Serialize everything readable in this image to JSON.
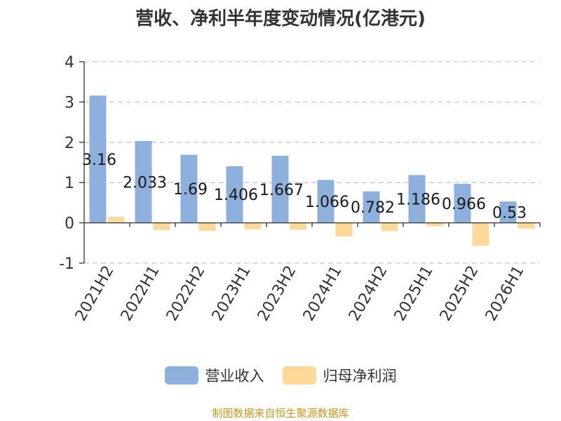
{
  "chart_data": {
    "type": "bar",
    "title": "营收、净利半年度变动情况(亿港元)",
    "categories": [
      "2021H2",
      "2022H1",
      "2022H2",
      "2023H1",
      "2023H2",
      "2024H1",
      "2024H2",
      "2025H1",
      "2025H2",
      "2026H1"
    ],
    "series": [
      {
        "name": "营业收入",
        "color": "#8eb0dc",
        "values": [
          3.16,
          2.033,
          1.69,
          1.406,
          1.667,
          1.066,
          0.782,
          1.186,
          0.966,
          0.53
        ],
        "labels": [
          "3.16",
          "2.033",
          "1.69",
          "1.406",
          "1.667",
          "1.066",
          "0.782",
          "1.186",
          "0.966",
          "0.53"
        ]
      },
      {
        "name": "归母净利润",
        "color": "#fdd999",
        "values": [
          0.15,
          -0.18,
          -0.2,
          -0.16,
          -0.17,
          -0.34,
          -0.2,
          -0.08,
          -0.57,
          -0.14
        ]
      }
    ],
    "yticks": [
      "4",
      "3",
      "2",
      "1",
      "0",
      "-1"
    ],
    "ylim": [
      -1,
      4
    ],
    "grid": true,
    "legend_position": "bottom"
  },
  "source": "制图数据来自恒生聚源数据库"
}
